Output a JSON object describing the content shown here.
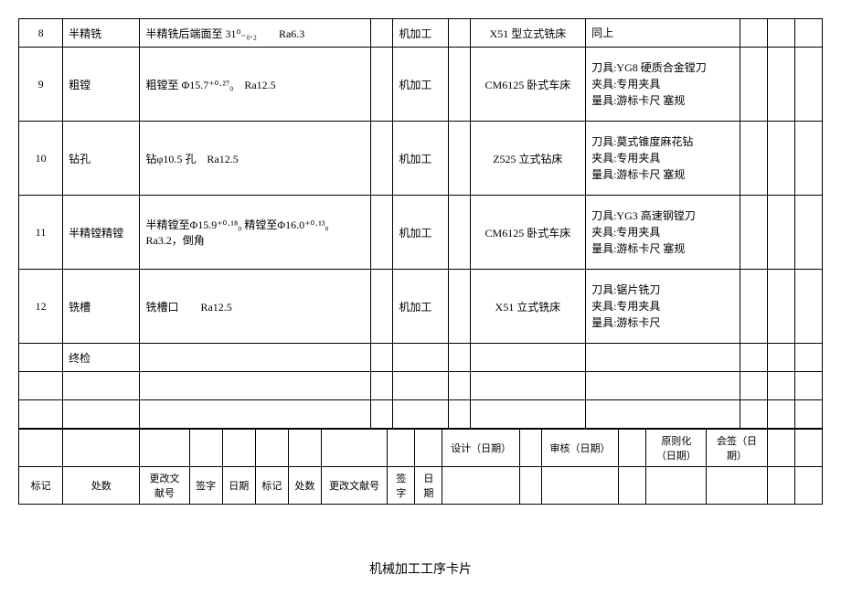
{
  "rows": [
    {
      "num": "8",
      "op": "半精铣",
      "desc": "半精铣后端面至 31⁰₋₀.₂　　Ra6.3",
      "sec": "机加工",
      "equip": "X51 型立式铣床",
      "tool": "同上"
    },
    {
      "num": "9",
      "op": "粗镗",
      "desc": "粗镗至 Φ15.7⁺⁰·²⁷₀　Ra12.5",
      "sec": "机加工",
      "equip": "CM6125 卧式车床",
      "tool": "刀具:YG8 硬质合金镗刀\n夹具:专用夹具\n量具:游标卡尺 塞规"
    },
    {
      "num": "10",
      "op": "钻孔",
      "desc": "钻φ10.5 孔　Ra12.5",
      "sec": "机加工",
      "equip": "Z525 立式钻床",
      "tool": "刀具:莫式锥度麻花钻\n夹具:专用夹具\n量具:游标卡尺 塞规"
    },
    {
      "num": "11",
      "op": "半精镗精镗",
      "desc": "半精镗至Φ15.9⁺⁰·¹⁸₀ 精镗至Φ16.0⁺⁰·¹³₀ Ra3.2，倒角",
      "sec": "机加工",
      "equip": "CM6125 卧式车床",
      "tool": "刀具:YG3 高速钢镗刀\n夹具:专用夹具\n量具:游标卡尺 塞规"
    },
    {
      "num": "12",
      "op": "铣槽",
      "desc": "铣槽口　　Ra12.5",
      "sec": "机加工",
      "equip": "X51 立式铣床",
      "tool": "刀具:锯片铣刀\n夹具:专用夹具\n量具:游标卡尺"
    },
    {
      "num": "",
      "op": "终检",
      "desc": "",
      "sec": "",
      "equip": "",
      "tool": ""
    }
  ],
  "sign": {
    "design": "设计（日期）",
    "audit": "审核（日期）",
    "principle": "原则化（日期）",
    "cosign": "会签（日期）"
  },
  "hdr2": {
    "mark": "标记",
    "count": "处数",
    "changedoc": "更改文献号",
    "sign": "签字",
    "date": "日期",
    "mark2": "标记",
    "count2": "处数",
    "changedoc2": "更改文献号",
    "sign2": "签字",
    "date2": "日期"
  },
  "footer": "机械加工工序卡片"
}
